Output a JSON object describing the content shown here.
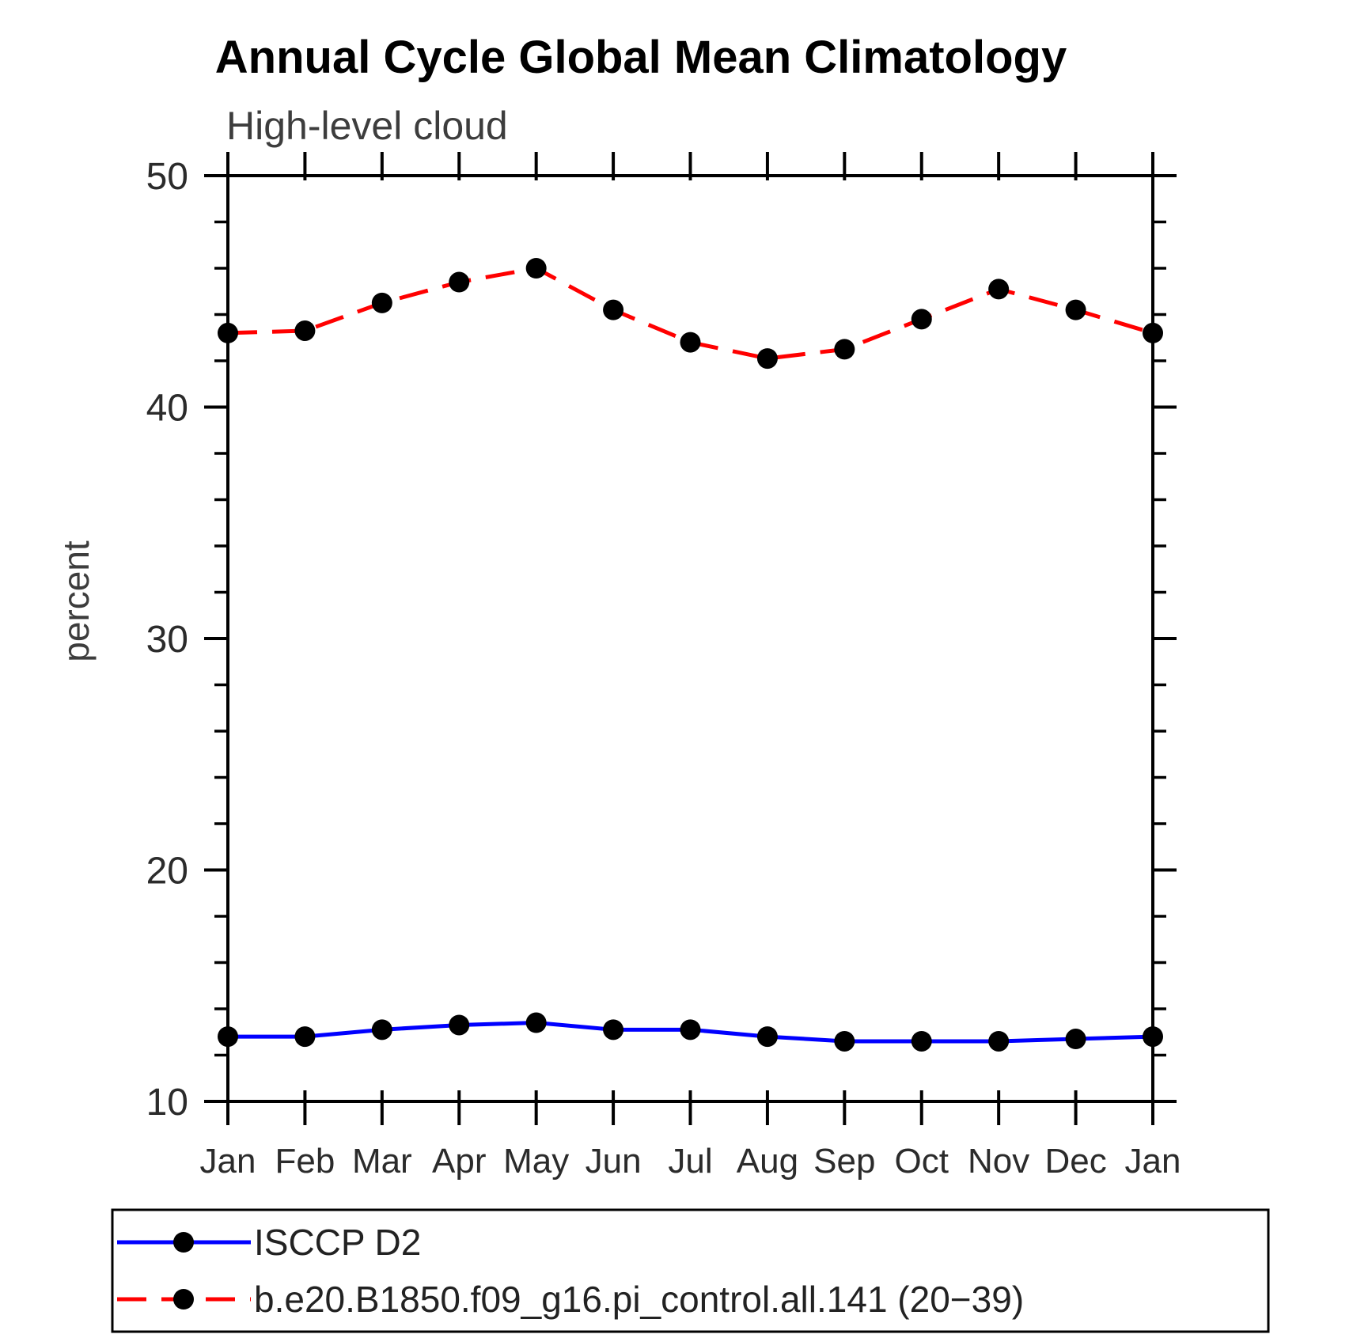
{
  "title": "Annual Cycle Global Mean Climatology",
  "chart_data": {
    "type": "line",
    "title": "Annual Cycle Global Mean Climatology",
    "subtitle": "High-level cloud",
    "ylabel": "percent",
    "xlabel": "",
    "ylim": [
      10,
      50
    ],
    "ytick_major": [
      10,
      20,
      30,
      40,
      50
    ],
    "ytick_minor_step": 2,
    "grid": false,
    "legend_position": "bottom-left-box",
    "categories": [
      "Jan",
      "Feb",
      "Mar",
      "Apr",
      "May",
      "Jun",
      "Jul",
      "Aug",
      "Sep",
      "Oct",
      "Nov",
      "Dec",
      "Jan"
    ],
    "series": [
      {
        "name": "ISCCP D2",
        "color": "#0000ff",
        "line_style": "solid",
        "line_width": 5,
        "marker": "circle",
        "marker_color": "#000000",
        "values": [
          12.8,
          12.8,
          13.1,
          13.3,
          13.4,
          13.1,
          13.1,
          12.8,
          12.6,
          12.6,
          12.6,
          12.7,
          12.8
        ]
      },
      {
        "name": "b.e20.B1850.f09_g16.pi_control.all.141 (20−39)",
        "color": "#ff0000",
        "line_style": "dashed",
        "line_width": 5,
        "marker": "circle",
        "marker_color": "#000000",
        "values": [
          43.2,
          43.3,
          44.5,
          45.4,
          46.0,
          44.2,
          42.8,
          42.1,
          42.5,
          43.8,
          45.1,
          44.2,
          43.2
        ]
      }
    ],
    "axis_color": "#000000",
    "label_color": "#2b2b2b"
  }
}
